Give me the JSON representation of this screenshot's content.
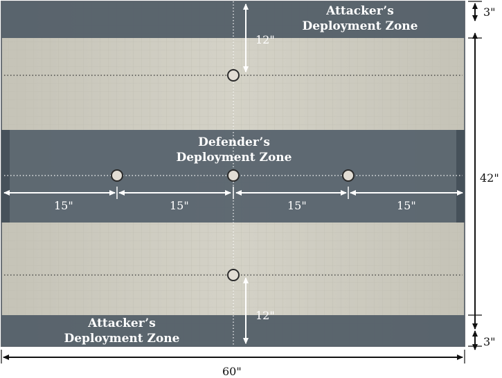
{
  "colors": {
    "board": "#cfcdc1",
    "board_grid": "#b9b7ab",
    "zone": "#56616a",
    "zone_edge": "#414b53",
    "objective_fill": "#e2ddd4",
    "objective_stroke": "#2b2b2b",
    "arrow_white": "#ffffff",
    "arrow_black": "#111111"
  },
  "zones": {
    "top_attacker": "Attacker’s\nDeployment Zone",
    "defender": "Defender’s\nDeployment Zone",
    "bottom_attacker": "Attacker’s\nDeployment Zone"
  },
  "dimensions": {
    "top_12": "12\"",
    "bottom_12": "12\"",
    "seg_1": "15\"",
    "seg_2": "15\"",
    "seg_3": "15\"",
    "seg_4": "15\"",
    "right_top_3": "3\"",
    "right_42": "42\"",
    "right_bottom_3": "3\"",
    "bottom_60": "60\""
  },
  "objectives": {
    "count": 5
  }
}
